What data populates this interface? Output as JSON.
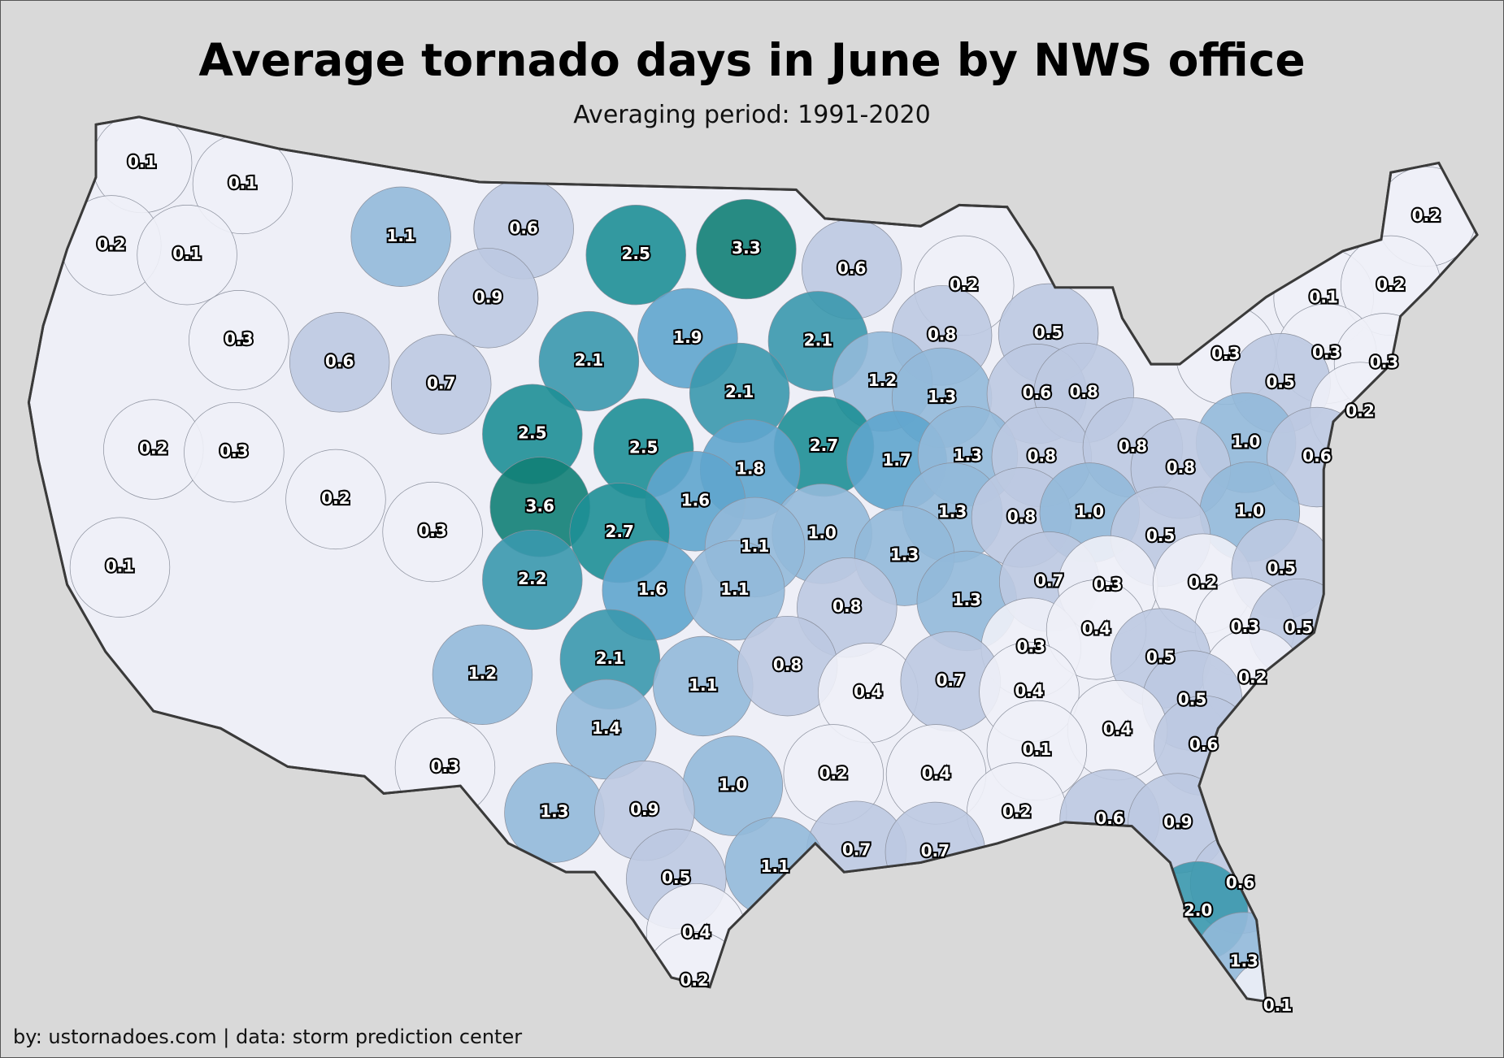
{
  "title": "Average tornado days in June by NWS office",
  "subtitle": "Averaging period: 1991-2020",
  "credit": "by: ustornadoes.com | data: storm prediction center",
  "color_scale": [
    {
      "max": 0.45,
      "color": "#eeeff7"
    },
    {
      "max": 0.95,
      "color": "#bdc9e1"
    },
    {
      "max": 1.45,
      "color": "#92b9d9"
    },
    {
      "max": 1.95,
      "color": "#5fa5cd"
    },
    {
      "max": 2.45,
      "color": "#3a98ad"
    },
    {
      "max": 2.95,
      "color": "#1e8f96"
    },
    {
      "max": 9,
      "color": "#117f75"
    }
  ],
  "offices": [
    "0.1",
    "0.1",
    "0.2",
    "0.1",
    "1.1",
    "0.6",
    "2.5",
    "3.3",
    "0.6",
    "0.2",
    "0.2",
    "0.1",
    "0.2",
    "0.9",
    "0.3",
    "0.6",
    "0.7",
    "2.1",
    "1.9",
    "2.1",
    "0.8",
    "0.5",
    "0.3",
    "0.3",
    "0.3",
    "0.5",
    "0.2",
    "2.1",
    "1.2",
    "1.3",
    "0.6",
    "0.8",
    "0.2",
    "0.3",
    "2.5",
    "2.5",
    "2.7",
    "1.7",
    "1.3",
    "0.8",
    "0.8",
    "1.0",
    "0.6",
    "0.8",
    "0.2",
    "3.6",
    "1.8",
    "1.6",
    "1.3",
    "0.8",
    "1.0",
    "1.0",
    "0.5",
    "0.3",
    "2.7",
    "1.0",
    "1.1",
    "1.3",
    "0.1",
    "2.2",
    "1.6",
    "1.1",
    "0.8",
    "1.3",
    "0.7",
    "0.3",
    "0.2",
    "0.5",
    "0.3",
    "0.4",
    "0.3",
    "0.5",
    "0.5",
    "0.2",
    "2.1",
    "1.2",
    "1.1",
    "0.8",
    "0.4",
    "0.7",
    "0.4",
    "0.5",
    "0.4",
    "1.4",
    "0.1",
    "0.6",
    "0.3",
    "0.2",
    "0.4",
    "1.0",
    "1.3",
    "0.9",
    "0.2",
    "0.6",
    "0.9",
    "0.7",
    "0.7",
    "1.1",
    "0.5",
    "0.6",
    "2.0",
    "0.4",
    "1.3",
    "0.2",
    "0.1"
  ]
}
